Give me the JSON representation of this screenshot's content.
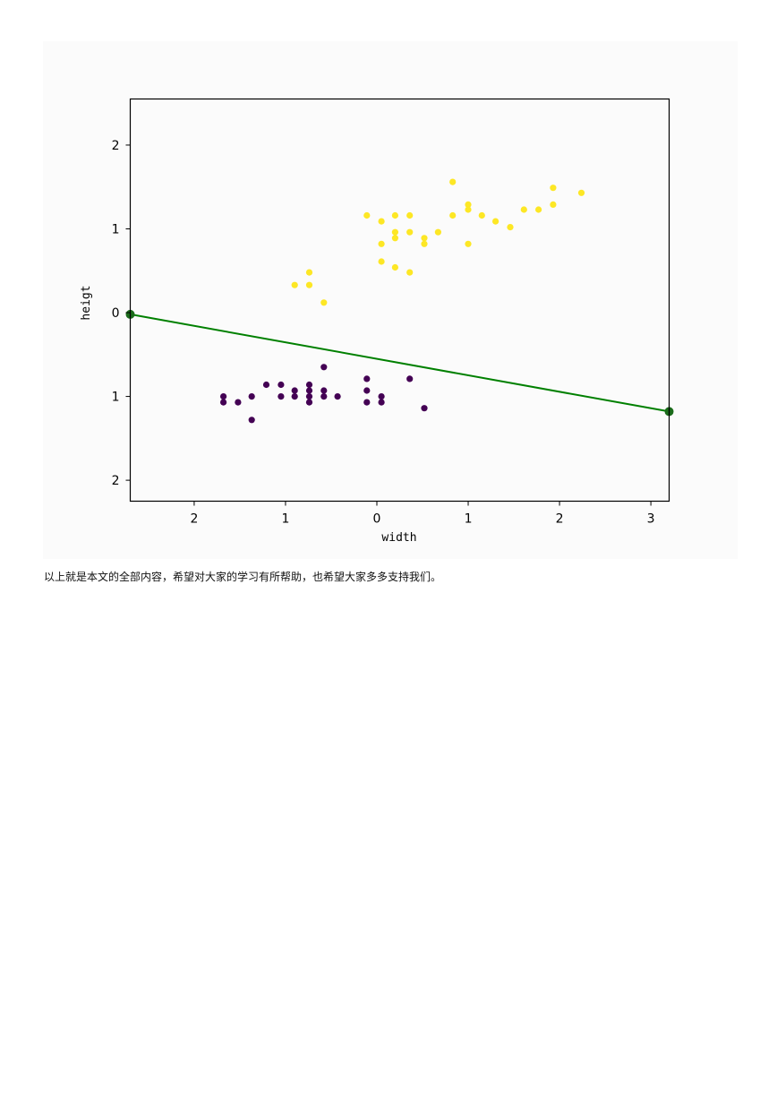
{
  "caption": "以上就是本文的全部内容，希望对大家的学习有所帮助，也希望大家多多支持我们。",
  "chart_data": {
    "type": "scatter",
    "xlabel": "width",
    "ylabel": "heigt",
    "xlim": [
      -2.7,
      3.2
    ],
    "ylim": [
      -2.25,
      2.55
    ],
    "xticks": [
      -2,
      -1,
      0,
      1,
      2,
      3
    ],
    "xtick_labels": [
      "2",
      "1",
      "0",
      "1",
      "2",
      "3"
    ],
    "yticks": [
      -2,
      -1,
      0,
      1,
      2
    ],
    "ytick_labels": [
      "2",
      "1",
      "0",
      "1",
      "2"
    ],
    "grid": false,
    "colors": {
      "class_0": "#440154",
      "class_1": "#fde725",
      "boundary": "#008000",
      "boundary_marker": "#1b6b1b",
      "frame": "#000000"
    },
    "series": [
      {
        "color_key": "class_1",
        "points": [
          [
            0.83,
            1.56
          ],
          [
            1.93,
            1.49
          ],
          [
            2.24,
            1.43
          ],
          [
            1.93,
            1.29
          ],
          [
            1.0,
            1.29
          ],
          [
            1.0,
            1.23
          ],
          [
            1.61,
            1.23
          ],
          [
            1.77,
            1.23
          ],
          [
            -0.11,
            1.16
          ],
          [
            0.2,
            1.16
          ],
          [
            0.36,
            1.16
          ],
          [
            0.83,
            1.16
          ],
          [
            1.15,
            1.16
          ],
          [
            0.05,
            1.09
          ],
          [
            1.3,
            1.09
          ],
          [
            1.46,
            1.02
          ],
          [
            0.2,
            0.96
          ],
          [
            0.36,
            0.96
          ],
          [
            0.67,
            0.96
          ],
          [
            0.2,
            0.89
          ],
          [
            0.52,
            0.89
          ],
          [
            0.05,
            0.82
          ],
          [
            0.52,
            0.82
          ],
          [
            1.0,
            0.82
          ],
          [
            0.05,
            0.61
          ],
          [
            0.2,
            0.54
          ],
          [
            -0.74,
            0.48
          ],
          [
            0.36,
            0.48
          ],
          [
            -0.9,
            0.33
          ],
          [
            -0.74,
            0.33
          ],
          [
            -0.58,
            0.12
          ]
        ]
      },
      {
        "color_key": "class_0",
        "points": [
          [
            -0.58,
            -0.65
          ],
          [
            -0.11,
            -0.79
          ],
          [
            0.36,
            -0.79
          ],
          [
            -1.21,
            -0.86
          ],
          [
            -1.05,
            -0.86
          ],
          [
            -0.74,
            -0.86
          ],
          [
            -0.9,
            -0.93
          ],
          [
            -0.74,
            -0.93
          ],
          [
            -0.58,
            -0.93
          ],
          [
            -0.11,
            -0.93
          ],
          [
            -1.68,
            -1.0
          ],
          [
            -1.37,
            -1.0
          ],
          [
            -1.05,
            -1.0
          ],
          [
            -0.9,
            -1.0
          ],
          [
            -0.74,
            -1.0
          ],
          [
            -0.58,
            -1.0
          ],
          [
            -0.43,
            -1.0
          ],
          [
            0.05,
            -1.0
          ],
          [
            -1.68,
            -1.07
          ],
          [
            -1.52,
            -1.07
          ],
          [
            -0.74,
            -1.07
          ],
          [
            -0.11,
            -1.07
          ],
          [
            0.05,
            -1.07
          ],
          [
            0.52,
            -1.14
          ],
          [
            -1.37,
            -1.28
          ]
        ]
      }
    ],
    "decision_boundary": {
      "points": [
        [
          -2.7,
          -0.02
        ],
        [
          3.2,
          -1.18
        ]
      ]
    }
  }
}
